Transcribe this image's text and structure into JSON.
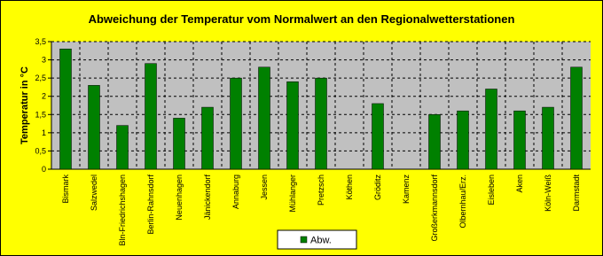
{
  "chart_data": {
    "type": "bar",
    "title": "Abweichung der Temperatur vom Normalwert an den Regionalwetterstationen",
    "y_label": "Temperatur in °C",
    "categories": [
      "Bismark",
      "Salzwedel",
      "Bln-Friedrichshagen",
      "Berlin-Rahnsdorf",
      "Neuenhagen",
      "Jänickendorf",
      "Annaburg",
      "Jessen",
      "Mühlanger",
      "Pretzsch",
      "Köthen",
      "Gröditz",
      "Kamenz",
      "Großerkmannsdorf",
      "Olbernhau/Erz.",
      "Eisleben",
      "Aken",
      "Köln-Weiß",
      "Darmstadt"
    ],
    "series": [
      {
        "name": "Abw.",
        "color": "#008000",
        "values": [
          3.3,
          2.3,
          1.2,
          2.9,
          1.4,
          1.7,
          2.5,
          2.8,
          2.4,
          2.5,
          null,
          1.8,
          null,
          1.5,
          1.6,
          2.2,
          1.6,
          1.7,
          2.8
        ]
      }
    ],
    "ylim": [
      0,
      3.5
    ],
    "yticks": [
      0,
      {
        "value": 0.5,
        "label": "0,5"
      },
      1,
      {
        "value": 1.5,
        "label": "1,5"
      },
      2,
      {
        "value": 2.5,
        "label": "2,5"
      },
      3,
      {
        "value": 3.5,
        "label": "3,5"
      }
    ],
    "grid": true,
    "legend": "bottom"
  }
}
